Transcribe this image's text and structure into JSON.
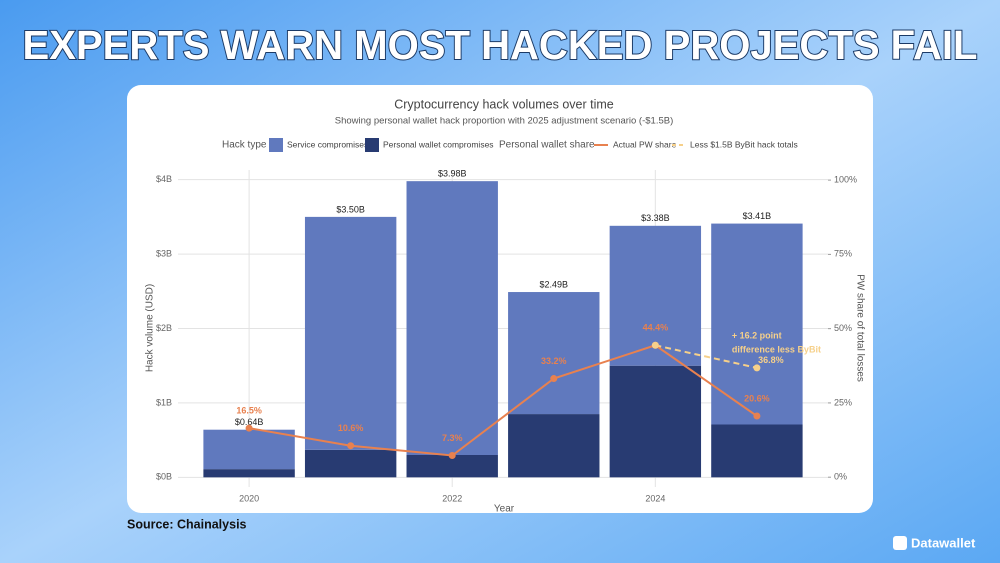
{
  "headline": "EXPERTS WARN MOST HACKED PROJECTS FAIL",
  "source": "Source: Chainalysis",
  "brand": "Datawallet",
  "chart_data": {
    "type": "bar",
    "title": "Cryptocurrency hack volumes over time",
    "subtitle": "Showing personal wallet hack proportion with 2025 adjustment scenario (-$1.5B)",
    "legend": {
      "hack_title": "Hack type",
      "share_title": "Personal wallet share"
    },
    "xlabel": "Year",
    "ylabel": "Hack volume (USD)",
    "y2label": "PW share of total losses",
    "x": [
      2020,
      2021,
      2022,
      2023,
      2024,
      2025
    ],
    "xlim": [
      2019.3,
      2025.7
    ],
    "xticks": [
      2020,
      2022,
      2024
    ],
    "ylim": [
      -0.13,
      4.13
    ],
    "yticks": [
      {
        "value": 0,
        "label": "$0B"
      },
      {
        "value": 1,
        "label": "$1B"
      },
      {
        "value": 2,
        "label": "$2B"
      },
      {
        "value": 3,
        "label": "$3B"
      },
      {
        "value": 4,
        "label": "$4B"
      }
    ],
    "y2lim": [
      -3.3,
      103.4
    ],
    "y2ticks": [
      {
        "value": 0,
        "label": "0%"
      },
      {
        "value": 25,
        "label": "25%"
      },
      {
        "value": 50,
        "label": "50%"
      },
      {
        "value": 75,
        "label": "75%"
      },
      {
        "value": 100,
        "label": "100%"
      }
    ],
    "grid": true,
    "series": [
      {
        "name": "Service compromises",
        "color": "#6079be",
        "values": [
          0.53,
          3.13,
          3.68,
          1.64,
          1.88,
          2.7
        ]
      },
      {
        "name": "Personal wallet compromises",
        "color": "#283b72",
        "values": [
          0.11,
          0.37,
          0.3,
          0.85,
          1.5,
          0.71
        ]
      },
      {
        "name": "Actual PW share",
        "type": "line",
        "axis": "y2",
        "color": "#e8814f",
        "values": [
          16.5,
          10.6,
          7.3,
          33.2,
          44.4,
          20.6
        ],
        "value_labels": [
          "16.5%",
          "10.6%",
          "7.3%",
          "33.2%",
          "44.4%",
          "20.6%"
        ]
      },
      {
        "name": "Less $1.5B ByBit hack totals",
        "type": "line",
        "axis": "y2",
        "dashed": true,
        "color": "#f6d08a",
        "values": [
          null,
          null,
          null,
          null,
          44.4,
          36.8
        ],
        "value_labels": [
          null,
          null,
          null,
          null,
          null,
          "36.8%"
        ]
      }
    ],
    "totals": {
      "values": [
        0.64,
        3.5,
        3.98,
        2.49,
        3.38,
        3.41
      ],
      "value_labels": [
        "$0.64B",
        "$3.50B",
        "$3.98B",
        "$2.49B",
        "$3.38B",
        "$3.41B"
      ]
    },
    "annotation": [
      "+ 16.2 point",
      "difference less ByBit"
    ]
  }
}
